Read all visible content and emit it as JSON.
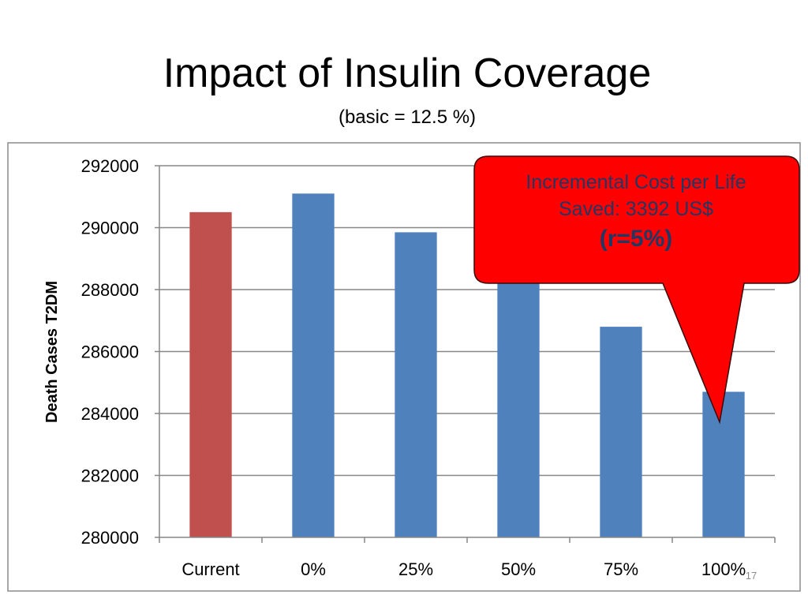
{
  "slide": {
    "title": "Impact of Insulin Coverage",
    "subtitle": "(basic = 12.5 %)",
    "slide_number": "17"
  },
  "colors": {
    "baseline_bar": "#c0504d",
    "scenario_bar": "#4f81bd",
    "gridline": "#878787",
    "callout_fill": "#ff0000",
    "callout_text": "#1f3864"
  },
  "chart_data": {
    "type": "bar",
    "title": "",
    "xlabel": "",
    "ylabel": "Death Cases T2DM",
    "categories": [
      "Current",
      "0%",
      "25%",
      "50%",
      "75%",
      "100%"
    ],
    "values": [
      290500,
      291100,
      289850,
      288900,
      286800,
      284700
    ],
    "ylim": [
      280000,
      292000
    ],
    "yticks": [
      280000,
      282000,
      284000,
      286000,
      288000,
      290000,
      292000
    ],
    "grid": true,
    "legend": "none",
    "annotations": [
      {
        "type": "callout",
        "text_lines": [
          "Incremental Cost per Life",
          "Saved: 3392 US$"
        ],
        "emphasis": "(r=5%)",
        "points_to": "100%"
      }
    ]
  }
}
